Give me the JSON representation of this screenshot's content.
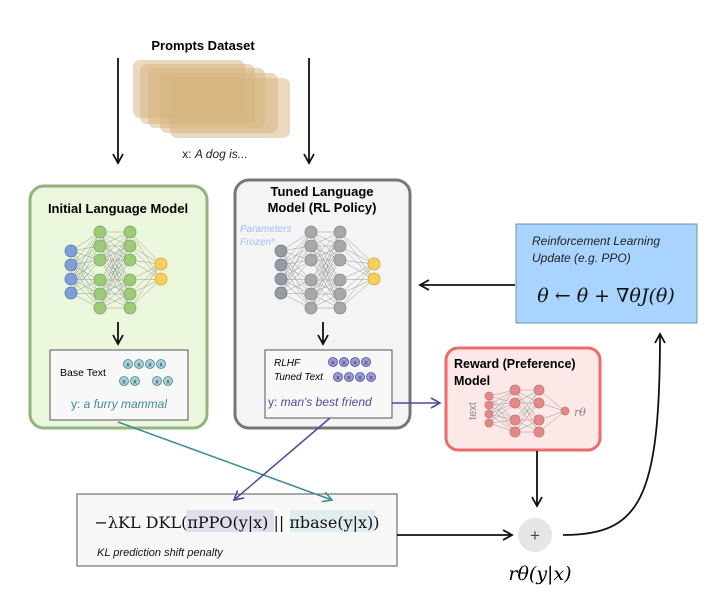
{
  "prompts": {
    "title": "Prompts Dataset",
    "example_prefix": "x: ",
    "example": "A dog is..."
  },
  "initial_model": {
    "title": "Initial Language Model",
    "output_label": "Base Text",
    "output_prefix": "y: ",
    "output_text": "a furry mammal"
  },
  "tuned_model": {
    "title_line1": "Tuned Language",
    "title_line2": "Model (RL Policy)",
    "frozen_line1": "Parameters",
    "frozen_line2": "Frozen*",
    "output_label_line1": "RLHF",
    "output_label_line2": "Tuned Text",
    "output_prefix": "y: ",
    "output_text": "man's best friend"
  },
  "rl_update": {
    "line1": "Reinforcement Learning",
    "line2": "Update (e.g. PPO)",
    "formula": "θ ← θ + ∇θJ(θ)"
  },
  "reward_model": {
    "title_line1": "Reward (Preference)",
    "title_line2": "Model",
    "input_label": "text",
    "output_label": "rθ"
  },
  "kl_penalty": {
    "formula": "−λKL DKL(πPPO(y|x) || πbase(y|x))",
    "caption": "KL prediction shift penalty"
  },
  "sum": {
    "symbol": "+",
    "label": "rθ(y|x)"
  },
  "colors": {
    "green_fill": "#eaf7dc",
    "green_stroke": "#93b37e",
    "gray_fill": "#f4f4f4",
    "gray_stroke": "#777777",
    "blue_fill": "#a9d4ff",
    "red_fill": "#fde8e8",
    "red_stroke": "#ee6b6b",
    "teal": "#3f8a96",
    "purple": "#4b4b9b",
    "frozen_blue": "#9cc0ff"
  }
}
